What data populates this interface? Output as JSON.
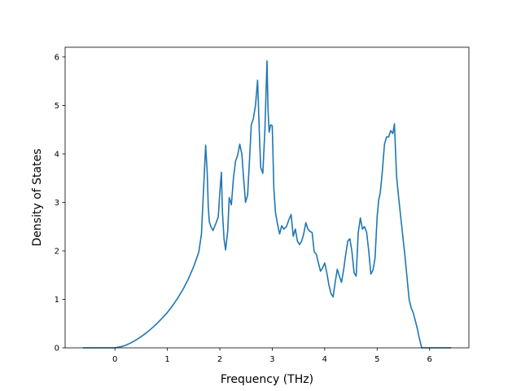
{
  "chart_data": {
    "type": "line",
    "title": "",
    "xlabel": "Frequency (THz)",
    "ylabel": "Density of States",
    "xlim": [
      -0.95,
      6.75
    ],
    "ylim": [
      0,
      6.2
    ],
    "xticks": [
      0,
      1,
      2,
      3,
      4,
      5,
      6
    ],
    "yticks": [
      0,
      1,
      2,
      3,
      4,
      5,
      6
    ],
    "grid": false,
    "series": [
      {
        "color": "#1f77b4",
        "x": [
          -0.6,
          -0.3,
          0.0,
          0.1,
          0.2,
          0.3,
          0.4,
          0.5,
          0.6,
          0.7,
          0.8,
          0.9,
          1.0,
          1.1,
          1.2,
          1.3,
          1.4,
          1.5,
          1.55,
          1.6,
          1.65,
          1.7,
          1.73,
          1.76,
          1.78,
          1.8,
          1.83,
          1.87,
          1.92,
          1.97,
          2.0,
          2.03,
          2.05,
          2.08,
          2.11,
          2.15,
          2.18,
          2.22,
          2.26,
          2.3,
          2.34,
          2.38,
          2.42,
          2.45,
          2.49,
          2.53,
          2.56,
          2.6,
          2.64,
          2.68,
          2.72,
          2.76,
          2.78,
          2.82,
          2.86,
          2.9,
          2.92,
          2.94,
          2.97,
          3.0,
          3.03,
          3.06,
          3.1,
          3.14,
          3.18,
          3.22,
          3.27,
          3.32,
          3.36,
          3.4,
          3.44,
          3.48,
          3.52,
          3.56,
          3.6,
          3.64,
          3.68,
          3.72,
          3.76,
          3.8,
          3.84,
          3.88,
          3.92,
          3.96,
          4.0,
          4.04,
          4.08,
          4.12,
          4.16,
          4.2,
          4.24,
          4.28,
          4.32,
          4.36,
          4.4,
          4.44,
          4.48,
          4.52,
          4.56,
          4.6,
          4.64,
          4.68,
          4.72,
          4.76,
          4.8,
          4.84,
          4.88,
          4.92,
          4.96,
          5.0,
          5.03,
          5.06,
          5.1,
          5.14,
          5.18,
          5.22,
          5.26,
          5.3,
          5.33,
          5.37,
          5.41,
          5.45,
          5.49,
          5.53,
          5.57,
          5.61,
          5.65,
          5.69,
          5.73,
          5.77,
          5.8,
          5.85,
          6.0,
          6.2,
          6.4
        ],
        "y": [
          0,
          0,
          0,
          0.02,
          0.05,
          0.1,
          0.16,
          0.23,
          0.31,
          0.4,
          0.5,
          0.61,
          0.73,
          0.87,
          1.03,
          1.21,
          1.42,
          1.67,
          1.82,
          1.98,
          2.35,
          3.5,
          4.18,
          3.6,
          2.9,
          2.6,
          2.5,
          2.42,
          2.55,
          2.7,
          3.2,
          3.62,
          2.8,
          2.25,
          2.02,
          2.4,
          3.1,
          2.95,
          3.5,
          3.85,
          3.97,
          4.2,
          4.0,
          3.55,
          3.0,
          3.15,
          3.75,
          4.6,
          4.73,
          5.0,
          5.52,
          4.25,
          3.72,
          3.6,
          4.5,
          5.92,
          4.9,
          4.45,
          4.6,
          4.58,
          3.3,
          2.8,
          2.55,
          2.35,
          2.52,
          2.45,
          2.5,
          2.65,
          2.75,
          2.3,
          2.45,
          2.2,
          2.13,
          2.2,
          2.35,
          2.58,
          2.45,
          2.4,
          2.38,
          1.98,
          1.93,
          1.75,
          1.58,
          1.65,
          1.75,
          1.55,
          1.3,
          1.12,
          1.05,
          1.35,
          1.62,
          1.48,
          1.35,
          1.6,
          1.92,
          2.2,
          2.25,
          1.98,
          1.55,
          1.48,
          2.38,
          2.68,
          2.45,
          2.5,
          2.38,
          2.0,
          1.52,
          1.6,
          1.85,
          2.7,
          3.05,
          3.2,
          3.65,
          4.2,
          4.35,
          4.35,
          4.48,
          4.42,
          4.62,
          3.55,
          3.1,
          2.7,
          2.3,
          1.9,
          1.45,
          1.0,
          0.82,
          0.72,
          0.55,
          0.38,
          0.22,
          0.0,
          0,
          0,
          0
        ]
      }
    ]
  }
}
